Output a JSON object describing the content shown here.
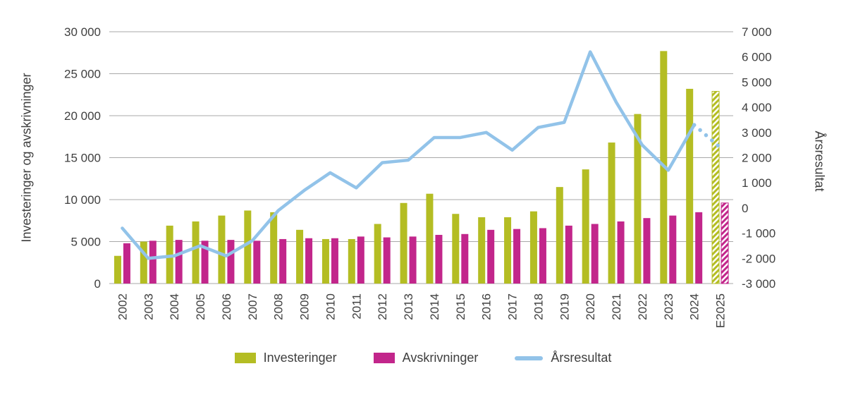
{
  "chart_data": {
    "type": "bar-line-combo",
    "categories": [
      "2002",
      "2003",
      "2004",
      "2005",
      "2006",
      "2007",
      "2008",
      "2009",
      "2010",
      "2011",
      "2012",
      "2013",
      "2014",
      "2015",
      "2016",
      "2017",
      "2018",
      "2019",
      "2020",
      "2021",
      "2022",
      "2023",
      "2024",
      "E2025"
    ],
    "series": [
      {
        "name": "Investeringer",
        "type": "bar",
        "axis": "left",
        "color": "#b4bd23",
        "values": [
          3300,
          5000,
          6900,
          7400,
          8100,
          8700,
          8500,
          6400,
          5300,
          5300,
          7100,
          9600,
          10700,
          8300,
          7900,
          7900,
          8600,
          11500,
          13600,
          16800,
          20200,
          27700,
          23200,
          22900
        ]
      },
      {
        "name": "Avskrivninger",
        "type": "bar",
        "axis": "left",
        "color": "#c2268b",
        "values": [
          4800,
          5100,
          5200,
          5100,
          5200,
          5100,
          5300,
          5400,
          5400,
          5600,
          5500,
          5600,
          5800,
          5900,
          6400,
          6500,
          6600,
          6900,
          7100,
          7400,
          7800,
          8100,
          8500,
          9600
        ]
      },
      {
        "name": "Årsresultat",
        "type": "line",
        "axis": "right",
        "color": "#92c3e9",
        "dotted_from_index": 22,
        "values": [
          -800,
          -2000,
          -1900,
          -1500,
          -1900,
          -1300,
          -100,
          700,
          1400,
          800,
          1800,
          1900,
          2800,
          2800,
          3000,
          2300,
          3200,
          3400,
          6200,
          4200,
          2500,
          1500,
          3300,
          2400
        ]
      }
    ],
    "estimate_category": "E2025",
    "left_axis": {
      "label": "Investeringer og avskrivninger",
      "min": 0,
      "max": 30000,
      "tick_step": 5000,
      "tick_labels": [
        "0",
        "5 000",
        "10 000",
        "15 000",
        "20 000",
        "25 000",
        "30 000"
      ]
    },
    "right_axis": {
      "label": "Årsresultat",
      "min": -3000,
      "max": 7000,
      "tick_step": 1000,
      "tick_labels": [
        "-3 000",
        "-2 000",
        "-1 000",
        "0",
        "1 000",
        "2 000",
        "3 000",
        "4 000",
        "5 000",
        "6 000",
        "7 000"
      ]
    },
    "legend": {
      "items": [
        "Investeringer",
        "Avskrivninger",
        "Årsresultat"
      ]
    },
    "grid": "horizontal",
    "legend_position": "bottom-center"
  }
}
